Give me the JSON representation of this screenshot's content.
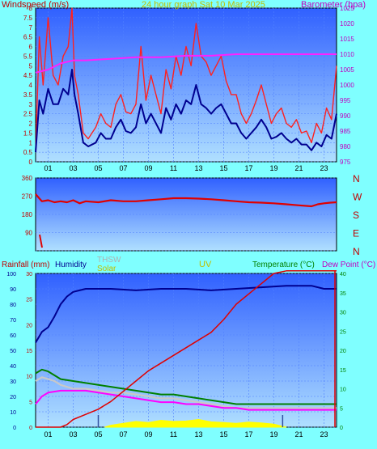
{
  "chart_data": [
    {
      "type": "line",
      "title": "24 hour graph Sat 10 Mar 2025",
      "ylabel": "Windspeed (m/s)",
      "y2label": "Barometer (hpa)",
      "x_ticks": [
        "01",
        "03",
        "05",
        "07",
        "09",
        "11",
        "13",
        "15",
        "17",
        "19",
        "21",
        "23"
      ],
      "y_ticks": [
        "0",
        "0.5",
        "1",
        "1.5",
        "2",
        "2.5",
        "3",
        "3.5",
        "4",
        "4.5",
        "5",
        "5.5",
        "6",
        "6.5",
        "7",
        "7.5",
        "8"
      ],
      "y2_ticks": [
        "975",
        "980",
        "985",
        "990",
        "995",
        "1000",
        "1005",
        "1010",
        "1015",
        "1020",
        "1025"
      ],
      "ylim": [
        0,
        8
      ],
      "y2lim": [
        975,
        1025
      ],
      "xlim": [
        0,
        24
      ],
      "colors": {
        "gust": "#ff2020",
        "average": "#000090",
        "barometer": "#ff20ff"
      },
      "series": [
        {
          "name": "gust",
          "axis": "left",
          "x": [
            0,
            0.3,
            0.6,
            1,
            1.4,
            1.8,
            2.2,
            2.6,
            2.9,
            3.1,
            3.4,
            3.8,
            4.2,
            4.8,
            5.2,
            5.6,
            6.0,
            6.4,
            6.8,
            7.2,
            7.6,
            8.0,
            8.4,
            8.8,
            9.2,
            9.6,
            10.0,
            10.4,
            10.8,
            11.2,
            11.6,
            12.0,
            12.4,
            12.8,
            13.2,
            13.6,
            14.0,
            14.4,
            14.8,
            15.2,
            15.6,
            16.0,
            16.4,
            16.8,
            17.2,
            17.6,
            18.0,
            18.4,
            18.8,
            19.2,
            19.6,
            20.0,
            20.4,
            20.8,
            21.2,
            21.6,
            22.0,
            22.4,
            22.8,
            23.2,
            23.6,
            24.0
          ],
          "y": [
            0.6,
            6.5,
            4.0,
            7.5,
            4.5,
            4.0,
            5.5,
            6.0,
            8.0,
            4.5,
            3.5,
            1.5,
            1.2,
            1.8,
            2.5,
            2.0,
            1.8,
            3.0,
            3.5,
            2.6,
            2.5,
            3.0,
            6.0,
            3.2,
            4.5,
            3.5,
            2.5,
            4.8,
            3.8,
            5.5,
            4.5,
            6.0,
            5.0,
            7.2,
            5.5,
            5.2,
            4.5,
            5.0,
            5.5,
            4.2,
            3.5,
            3.5,
            2.5,
            2.0,
            2.5,
            3.2,
            4.0,
            3.0,
            2.0,
            2.5,
            2.8,
            2.0,
            1.8,
            2.2,
            1.5,
            1.6,
            1.0,
            2.0,
            1.5,
            2.8,
            2.2,
            5.0
          ]
        },
        {
          "name": "average",
          "axis": "left",
          "x": [
            0,
            0.3,
            0.6,
            1,
            1.4,
            1.8,
            2.2,
            2.6,
            2.9,
            3.1,
            3.4,
            3.8,
            4.2,
            4.8,
            5.2,
            5.6,
            6.0,
            6.4,
            6.8,
            7.2,
            7.6,
            8.0,
            8.4,
            8.8,
            9.2,
            9.6,
            10.0,
            10.4,
            10.8,
            11.2,
            11.6,
            12.0,
            12.4,
            12.8,
            13.2,
            13.6,
            14.0,
            14.4,
            14.8,
            15.2,
            15.6,
            16.0,
            16.4,
            16.8,
            17.2,
            17.6,
            18.0,
            18.4,
            18.8,
            19.2,
            19.6,
            20.0,
            20.4,
            20.8,
            21.2,
            21.6,
            22.0,
            22.4,
            22.8,
            23.2,
            23.6,
            24.0
          ],
          "y": [
            0.5,
            3.2,
            2.5,
            3.8,
            3.0,
            3.0,
            3.8,
            3.5,
            4.8,
            3.5,
            2.5,
            1.0,
            0.8,
            1.0,
            1.5,
            1.2,
            1.2,
            1.8,
            2.2,
            1.6,
            1.5,
            1.8,
            3.0,
            2.0,
            2.5,
            2.0,
            1.5,
            2.8,
            2.2,
            3.0,
            2.5,
            3.2,
            3.0,
            4.0,
            3.0,
            2.8,
            2.5,
            2.8,
            3.0,
            2.5,
            2.0,
            2.0,
            1.5,
            1.2,
            1.5,
            1.8,
            2.2,
            1.8,
            1.2,
            1.3,
            1.5,
            1.2,
            1.0,
            1.2,
            0.9,
            0.9,
            0.6,
            1.0,
            0.8,
            1.4,
            1.2,
            2.5
          ]
        },
        {
          "name": "barometer",
          "axis": "right",
          "x": [
            0,
            1,
            2,
            3,
            4,
            6,
            8,
            10,
            12,
            14,
            16,
            18,
            20,
            22,
            24
          ],
          "y": [
            1004,
            1005,
            1007,
            1008,
            1008,
            1008.5,
            1009,
            1009,
            1009.5,
            1009.5,
            1010,
            1010,
            1010,
            1010,
            1010
          ]
        }
      ]
    },
    {
      "type": "line",
      "ylabel": "",
      "y_ticks": [
        "360",
        "270",
        "180",
        "90",
        ""
      ],
      "y2_ticks": [
        "N",
        "W",
        "S",
        "E",
        "N"
      ],
      "ylim": [
        0,
        360
      ],
      "xlim": [
        0,
        24
      ],
      "colors": {
        "direction": "#e00000"
      },
      "series": [
        {
          "name": "direction",
          "x": [
            0,
            0.5,
            1,
            1.5,
            2,
            2.5,
            3,
            3.5,
            4,
            5,
            6,
            7,
            8,
            9,
            10,
            11,
            12,
            13,
            14,
            15,
            16,
            17,
            18,
            19,
            20,
            21,
            22,
            22.5,
            23,
            23.5,
            24
          ],
          "y": [
            280,
            245,
            250,
            240,
            245,
            240,
            250,
            235,
            245,
            240,
            250,
            245,
            245,
            250,
            255,
            260,
            260,
            258,
            255,
            250,
            245,
            240,
            238,
            235,
            230,
            225,
            220,
            230,
            235,
            238,
            240
          ]
        }
      ]
    },
    {
      "type": "line",
      "labels": {
        "rainfall": "Rainfall (mm)",
        "humidity": "Humidity",
        "thsw": "THSW",
        "solar": "Solar",
        "uv": "UV",
        "temperature": "Temperature (°C)",
        "dewpoint": "Dew Point (°C)"
      },
      "x_ticks": [
        "01",
        "03",
        "05",
        "07",
        "09",
        "11",
        "13",
        "15",
        "17",
        "19",
        "21",
        "23"
      ],
      "y_ticks": [
        "0",
        "5",
        "10",
        "15",
        "20",
        "25",
        "30"
      ],
      "y_hum_ticks": [
        "0",
        "10",
        "20",
        "30",
        "40",
        "50",
        "60",
        "70",
        "80",
        "90",
        "100"
      ],
      "y2_ticks": [
        "0",
        "5",
        "10",
        "15",
        "20",
        "25",
        "30",
        "35",
        "40"
      ],
      "ylim": [
        0,
        30
      ],
      "y2lim": [
        0,
        40
      ],
      "xlim": [
        0,
        24
      ],
      "colors": {
        "rainfall": "#e00000",
        "humidity": "#000090",
        "temperature": "#008000",
        "dewpoint": "#ff00ff",
        "thsw": "#c8c8c8",
        "solar": "#ffff00"
      },
      "series": [
        {
          "name": "humidity",
          "axis": "humidity",
          "x": [
            0,
            0.5,
            1,
            1.5,
            2,
            2.5,
            3,
            3.5,
            4,
            6,
            8,
            10,
            12,
            14,
            16,
            18,
            20,
            22,
            23,
            24
          ],
          "y": [
            55,
            62,
            65,
            72,
            80,
            85,
            88,
            89,
            90,
            90,
            89,
            90,
            90,
            89,
            90,
            91,
            92,
            92,
            90,
            90
          ]
        },
        {
          "name": "rainfall",
          "axis": "left",
          "x": [
            0,
            1,
            2,
            2.5,
            3,
            4,
            5,
            6,
            7,
            8,
            9,
            10,
            11,
            12,
            13,
            14,
            15,
            16,
            17,
            18,
            19,
            20,
            20.05,
            24
          ],
          "y": [
            0,
            0,
            0,
            0.5,
            1.5,
            2.5,
            3.5,
            5,
            7,
            9,
            11,
            12.5,
            14,
            15.5,
            17,
            18.5,
            21,
            24,
            26,
            28,
            30,
            30.5,
            30.5,
            30.5
          ]
        },
        {
          "name": "temperature",
          "axis": "right",
          "x": [
            0,
            0.5,
            1,
            1.5,
            2,
            3,
            4,
            5,
            6,
            7,
            8,
            9,
            10,
            11,
            12,
            13,
            14,
            15,
            16,
            17,
            18,
            19,
            20,
            21,
            22,
            23,
            24
          ],
          "y": [
            14,
            15,
            14.5,
            13.5,
            12.5,
            12,
            11.5,
            11,
            10.5,
            10,
            9.5,
            9,
            8.5,
            8.5,
            8,
            7.5,
            7,
            6.5,
            6,
            6,
            6,
            6,
            6,
            6,
            6,
            6,
            6
          ]
        },
        {
          "name": "dewpoint",
          "axis": "right",
          "x": [
            0,
            0.5,
            1,
            2,
            3,
            4,
            5,
            6,
            7,
            8,
            9,
            10,
            11,
            12,
            13,
            14,
            15,
            16,
            17,
            18,
            19,
            20,
            21,
            22,
            23,
            24
          ],
          "y": [
            6,
            8,
            9,
            9.5,
            9.5,
            9.5,
            9,
            8.5,
            8,
            7.5,
            7,
            6.5,
            6.5,
            6,
            6,
            5.5,
            5,
            5,
            4.5,
            4.5,
            4.5,
            4.5,
            4.5,
            4.5,
            4.5,
            4.5
          ]
        },
        {
          "name": "thsw",
          "axis": "right",
          "x": [
            0,
            0.5,
            1,
            1.5,
            2,
            3,
            4,
            5,
            6,
            7,
            8,
            9,
            10,
            11,
            12,
            13,
            14,
            15,
            16,
            17,
            18,
            19,
            20,
            21,
            22,
            23,
            24
          ],
          "y": [
            12,
            13,
            12.5,
            12,
            11,
            10,
            10,
            9.5,
            9,
            9,
            8.5,
            8,
            7.5,
            7.5,
            7,
            6.5,
            6,
            5.5,
            5,
            5,
            5,
            5,
            5,
            5,
            5,
            5,
            5
          ]
        },
        {
          "name": "solar",
          "axis": "right",
          "type": "area",
          "x": [
            5.5,
            6,
            7,
            8,
            9,
            10,
            11,
            12,
            13,
            14,
            15,
            16,
            17,
            18,
            19,
            20
          ],
          "y": [
            0,
            0.5,
            1.0,
            1.5,
            1.2,
            1.8,
            1.5,
            1.6,
            2.0,
            1.4,
            1.2,
            1.0,
            1.3,
            1.1,
            0.8,
            0
          ]
        },
        {
          "name": "uv",
          "axis": "right",
          "x": [
            5,
            5,
            19.7,
            19.7
          ],
          "y": [
            0,
            2,
            2,
            0
          ]
        }
      ]
    }
  ]
}
